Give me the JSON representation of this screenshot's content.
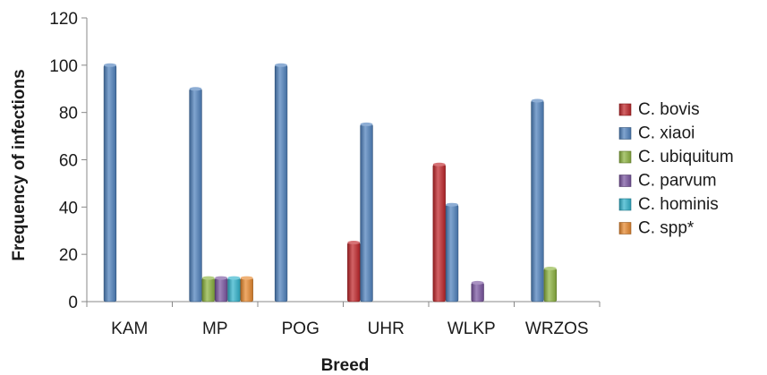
{
  "chart_data": {
    "type": "bar",
    "title": "",
    "xlabel": "Breed",
    "ylabel": "Frequency of infections",
    "ylim": [
      0,
      120
    ],
    "yticks": [
      0,
      20,
      40,
      60,
      80,
      100,
      120
    ],
    "categories": [
      "KAM",
      "MP",
      "POG",
      "UHR",
      "WLKP",
      "WRZOS"
    ],
    "grid": false,
    "legend_position": "right",
    "series": [
      {
        "name": "C. bovis",
        "color": "#c0262a",
        "values": [
          0,
          0,
          0,
          25,
          58,
          0
        ]
      },
      {
        "name": "C. xiaoi",
        "color": "#4f81bd",
        "values": [
          100,
          90,
          100,
          75,
          41,
          85
        ]
      },
      {
        "name": "C. ubiquitum",
        "color": "#8cb33f",
        "values": [
          0,
          10,
          0,
          0,
          0,
          14
        ]
      },
      {
        "name": "C. parvum",
        "color": "#7a55a0",
        "values": [
          0,
          10,
          0,
          0,
          8,
          0
        ]
      },
      {
        "name": "C. hominis",
        "color": "#31b3cc",
        "values": [
          0,
          10,
          0,
          0,
          0,
          0
        ]
      },
      {
        "name": "C. spp*",
        "color": "#e8892e",
        "values": [
          0,
          10,
          0,
          0,
          0,
          0
        ]
      }
    ]
  }
}
